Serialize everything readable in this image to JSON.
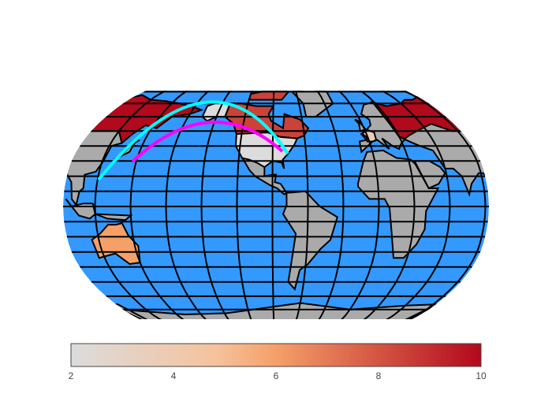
{
  "chart_data": {
    "type": "choropleth",
    "values": [
      10,
      8.5,
      2,
      6,
      3.5
    ],
    "zlim": [
      2,
      10
    ],
    "zticks": [
      2,
      4,
      6,
      8,
      10
    ],
    "colorscale": [
      [
        0,
        "#dcdcdc"
      ],
      [
        0.35,
        "#f5c39d"
      ],
      [
        0.5,
        "#f5a069"
      ],
      [
        1,
        "#b2091c"
      ]
    ],
    "land_color": "#aaaaaa",
    "ocean_color": "#3399ff",
    "lines": [
      {
        "color": "#00ffff"
      },
      {
        "color": "#ff00ff"
      }
    ]
  }
}
